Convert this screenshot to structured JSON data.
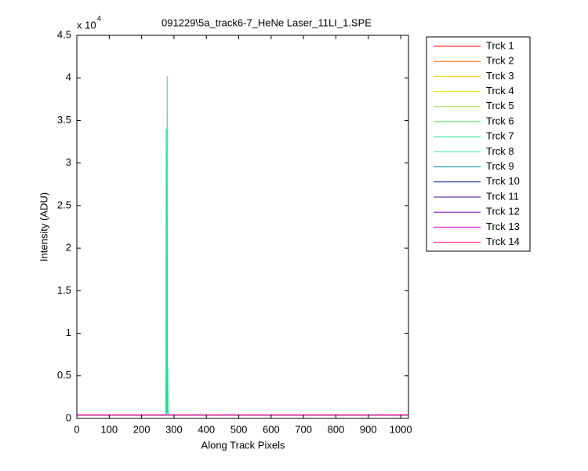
{
  "chart_data": {
    "type": "line",
    "title": "091229\\5a_track6-7_HeNe Laser_11LI_1.SPE",
    "xlabel": "Along Track Pixels",
    "ylabel": "Intensity (ADU)",
    "multiplier": "x 10",
    "multiplier_exponent": "4",
    "x": [
      0,
      274,
      275,
      276,
      277,
      278,
      279,
      280,
      281,
      282,
      283,
      1023
    ],
    "xlim": [
      0,
      1024
    ],
    "xticks": [
      0,
      100,
      200,
      300,
      400,
      500,
      600,
      700,
      800,
      900,
      1000
    ],
    "ylim": [
      0,
      4.5
    ],
    "yticks": [
      0,
      0.5,
      1,
      1.5,
      2,
      2.5,
      3,
      3.5,
      4,
      4.5
    ],
    "legend": "outside-right",
    "series": [
      {
        "name": "Trck 1",
        "color": "#ff0000",
        "values": [
          0.04,
          0.04,
          0.04,
          0.04,
          0.04,
          0.04,
          0.04,
          0.04,
          0.04,
          0.04,
          0.04,
          0.04
        ]
      },
      {
        "name": "Trck 2",
        "color": "#ff6a00",
        "values": [
          0.04,
          0.04,
          0.04,
          0.04,
          0.04,
          0.04,
          0.04,
          0.04,
          0.04,
          0.04,
          0.04,
          0.04
        ]
      },
      {
        "name": "Trck 3",
        "color": "#ffcc00",
        "values": [
          0.04,
          0.04,
          0.04,
          0.04,
          0.04,
          0.04,
          0.04,
          0.04,
          0.04,
          0.04,
          0.04,
          0.04
        ]
      },
      {
        "name": "Trck 4",
        "color": "#e6e600",
        "values": [
          0.04,
          0.04,
          0.04,
          0.04,
          0.04,
          0.04,
          0.04,
          0.04,
          0.04,
          0.04,
          0.04,
          0.04
        ]
      },
      {
        "name": "Trck 5",
        "color": "#a0e040",
        "values": [
          0.04,
          0.04,
          0.04,
          0.04,
          0.04,
          0.04,
          0.04,
          0.04,
          0.04,
          0.04,
          0.04,
          0.04
        ]
      },
      {
        "name": "Trck 6",
        "color": "#40e040",
        "values": [
          0.04,
          0.04,
          0.04,
          0.04,
          0.04,
          0.04,
          0.04,
          0.04,
          0.04,
          0.04,
          0.04,
          0.04
        ]
      },
      {
        "name": "Trck 7",
        "color": "#20e090",
        "values": [
          0.04,
          0.04,
          0.5,
          3.4,
          0.06,
          0.06,
          4.02,
          0.06,
          0.6,
          0.06,
          0.04,
          0.04
        ]
      },
      {
        "name": "Trck 8",
        "color": "#40e0c8",
        "values": [
          0.04,
          0.04,
          0.04,
          0.04,
          0.04,
          0.04,
          0.04,
          0.04,
          0.04,
          0.04,
          0.04,
          0.04
        ]
      },
      {
        "name": "Trck 9",
        "color": "#0090a0",
        "values": [
          0.04,
          0.04,
          0.04,
          0.04,
          0.04,
          0.04,
          0.04,
          0.04,
          0.04,
          0.04,
          0.04,
          0.04
        ]
      },
      {
        "name": "Trck 10",
        "color": "#0020a0",
        "values": [
          0.04,
          0.04,
          0.04,
          0.04,
          0.04,
          0.04,
          0.04,
          0.04,
          0.04,
          0.04,
          0.04,
          0.04
        ]
      },
      {
        "name": "Trck 11",
        "color": "#4000a0",
        "values": [
          0.04,
          0.04,
          0.04,
          0.04,
          0.04,
          0.04,
          0.04,
          0.04,
          0.04,
          0.04,
          0.04,
          0.04
        ]
      },
      {
        "name": "Trck 12",
        "color": "#8000c0",
        "values": [
          0.04,
          0.04,
          0.04,
          0.04,
          0.04,
          0.04,
          0.04,
          0.04,
          0.04,
          0.04,
          0.04,
          0.04
        ]
      },
      {
        "name": "Trck 13",
        "color": "#e000e0",
        "values": [
          0.04,
          0.04,
          0.04,
          0.04,
          0.04,
          0.04,
          0.04,
          0.04,
          0.04,
          0.04,
          0.04,
          0.04
        ]
      },
      {
        "name": "Trck 14",
        "color": "#ff0080",
        "values": [
          0.04,
          0.04,
          0.04,
          0.04,
          0.04,
          0.04,
          0.04,
          0.04,
          0.04,
          0.04,
          0.04,
          0.04
        ]
      }
    ]
  }
}
